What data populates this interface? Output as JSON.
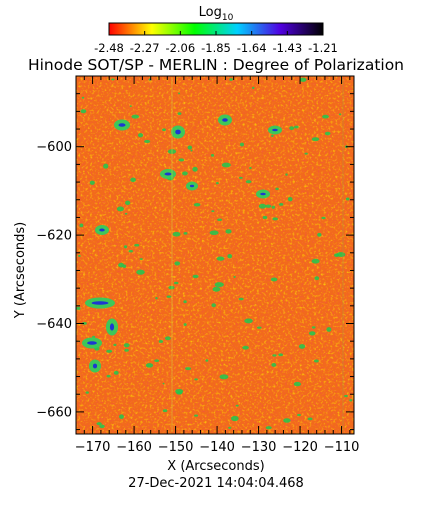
{
  "colorbar": {
    "label_base": "Log",
    "label_sub": "10",
    "ticks": [
      "-2.48",
      "-2.27",
      "-2.06",
      "-1.85",
      "-1.64",
      "-1.43",
      "-1.21"
    ],
    "range": [
      -2.48,
      -1.21
    ]
  },
  "title": "Hinode SOT/SP - MERLIN : Degree of Polarization",
  "axes": {
    "xlabel": "X (Arcseconds)",
    "ylabel": "Y (Arcseconds)",
    "xlim": [
      -174,
      -107
    ],
    "ylim": [
      -665,
      -584
    ],
    "xticks": [
      -170,
      -160,
      -150,
      -140,
      -130,
      -120,
      -110
    ],
    "yticks": [
      -600,
      -620,
      -640,
      -660
    ]
  },
  "timestamp": "27-Dec-2021 14:04:04.468",
  "colors": {
    "map_base": "#f26a1c",
    "map_hot": "#ffc000",
    "map_low": "#e81010",
    "spots": "#1ec850",
    "spot_core": "#1a2fd8"
  }
}
